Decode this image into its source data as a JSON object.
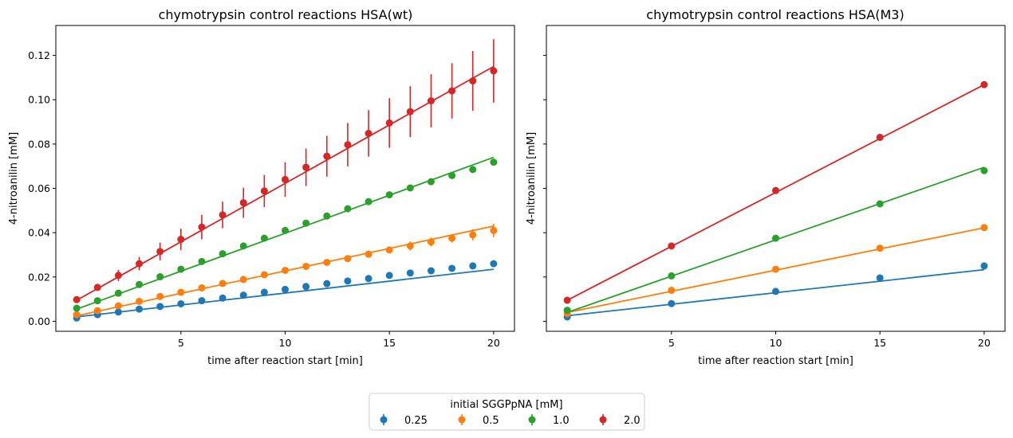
{
  "colors": {
    "0.25": "#1f77b4",
    "0.5": "#ff7f0e",
    "1.0": "#2ca02c",
    "2.0": "#d62728"
  },
  "legend": {
    "title": "initial SGGPpNA  [mM]",
    "items": [
      "0.25",
      "0.5",
      "1.0",
      "2.0"
    ],
    "placement": "bottom-center"
  },
  "chart_data": [
    {
      "type": "scatter",
      "title": "chymotrypsin control reactions HSA(wt)",
      "xlabel": "time after reaction start [min]",
      "ylabel": "4-nitroanilin [mM]",
      "xlim": [
        -1.0,
        21.0
      ],
      "ylim": [
        -0.0045,
        0.1335
      ],
      "xticks": [
        5,
        10,
        15,
        20
      ],
      "yticks": [
        0.0,
        0.02,
        0.04,
        0.06,
        0.08,
        0.1,
        0.12
      ],
      "ytick_labels": [
        "0.00",
        "0.02",
        "0.04",
        "0.06",
        "0.08",
        "0.10",
        "0.12"
      ],
      "x": [
        0,
        1,
        2,
        3,
        4,
        5,
        6,
        7,
        8,
        9,
        10,
        11,
        12,
        13,
        14,
        15,
        16,
        17,
        18,
        19,
        20
      ],
      "series": [
        {
          "name": "0.25",
          "y": [
            0.0015,
            0.003,
            0.0042,
            0.0055,
            0.0067,
            0.0079,
            0.0093,
            0.0105,
            0.0118,
            0.0131,
            0.0144,
            0.0157,
            0.017,
            0.0182,
            0.0193,
            0.0207,
            0.0218,
            0.0228,
            0.0239,
            0.025,
            0.026
          ],
          "yerr": [
            0,
            0,
            0,
            0,
            0,
            0,
            0,
            0,
            0,
            0,
            0,
            0,
            0,
            0,
            0,
            0,
            0,
            0,
            0,
            0,
            0
          ],
          "fit": [
            0.002,
            0.0235
          ]
        },
        {
          "name": "0.5",
          "y": [
            0.003,
            0.0048,
            0.007,
            0.009,
            0.0112,
            0.0131,
            0.0151,
            0.0171,
            0.0189,
            0.021,
            0.023,
            0.0248,
            0.0266,
            0.0283,
            0.0303,
            0.0322,
            0.034,
            0.0358,
            0.0375,
            0.039,
            0.041
          ],
          "yerr": [
            0,
            0,
            0,
            0,
            0,
            0,
            0,
            0.0005,
            0.0005,
            0.001,
            0.001,
            0.001,
            0.001,
            0.0015,
            0.0015,
            0.0015,
            0.002,
            0.002,
            0.002,
            0.0025,
            0.003
          ],
          "fit": [
            0.0025,
            0.043
          ]
        },
        {
          "name": "1.0",
          "y": [
            0.0059,
            0.0093,
            0.0127,
            0.0166,
            0.0201,
            0.0235,
            0.027,
            0.0305,
            0.034,
            0.0375,
            0.041,
            0.0443,
            0.0475,
            0.0508,
            0.054,
            0.0571,
            0.0602,
            0.063,
            0.0658,
            0.0685,
            0.0718
          ],
          "yerr": [
            0,
            0,
            0,
            0,
            0,
            0,
            0,
            0,
            0,
            0,
            0,
            0,
            0,
            0,
            0,
            0,
            0,
            0,
            0,
            0,
            0
          ],
          "fit": [
            0.0055,
            0.074
          ]
        },
        {
          "name": "2.0",
          "y": [
            0.0098,
            0.0153,
            0.0207,
            0.026,
            0.0315,
            0.037,
            0.0425,
            0.048,
            0.0535,
            0.0588,
            0.064,
            0.0695,
            0.0745,
            0.0797,
            0.0848,
            0.0895,
            0.0946,
            0.0995,
            0.104,
            0.1085,
            0.113
          ],
          "yerr": [
            0.001,
            0.0015,
            0.0025,
            0.003,
            0.004,
            0.0048,
            0.0055,
            0.006,
            0.0068,
            0.0073,
            0.0078,
            0.0085,
            0.0092,
            0.0098,
            0.0105,
            0.0112,
            0.0115,
            0.012,
            0.0125,
            0.0135,
            0.0143
          ],
          "fit": [
            0.0095,
            0.115
          ]
        }
      ]
    },
    {
      "type": "scatter",
      "title": "chymotrypsin control reactions HSA(M3)",
      "xlabel": "time after reaction start [min]",
      "ylabel": "4-nitroanilin [mM]",
      "xlim": [
        -1.0,
        21.0
      ],
      "ylim": [
        -0.0045,
        0.1335
      ],
      "xticks": [
        5,
        10,
        15,
        20
      ],
      "yticks": [
        0.0,
        0.02,
        0.04,
        0.06,
        0.08,
        0.1,
        0.12
      ],
      "ytick_labels": [
        "",
        "",
        "",
        "",
        "",
        "",
        ""
      ],
      "x": [
        0,
        5,
        10,
        15,
        20
      ],
      "series": [
        {
          "name": "0.25",
          "y": [
            0.002,
            0.008,
            0.0135,
            0.0196,
            0.025
          ],
          "yerr": [
            0,
            0,
            0,
            0,
            0
          ],
          "fit": [
            0.0025,
            0.0233
          ]
        },
        {
          "name": "0.5",
          "y": [
            0.0035,
            0.014,
            0.0235,
            0.033,
            0.0423
          ],
          "yerr": [
            0,
            0,
            0,
            0,
            0
          ],
          "fit": [
            0.004,
            0.0422
          ]
        },
        {
          "name": "1.0",
          "y": [
            0.005,
            0.0205,
            0.0375,
            0.053,
            0.068
          ],
          "yerr": [
            0,
            0,
            0,
            0,
            0
          ],
          "fit": [
            0.004,
            0.0695
          ]
        },
        {
          "name": "2.0",
          "y": [
            0.0095,
            0.034,
            0.059,
            0.083,
            0.1068
          ],
          "yerr": [
            0,
            0,
            0,
            0,
            0
          ],
          "fit": [
            0.0095,
            0.1068
          ]
        }
      ]
    }
  ]
}
